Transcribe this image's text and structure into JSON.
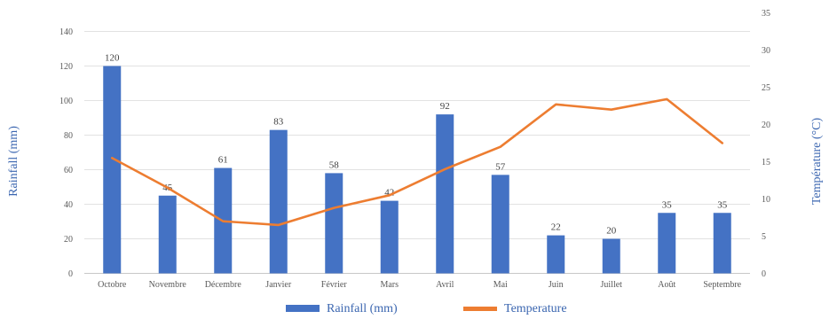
{
  "chart_data": {
    "type": "bar",
    "categories": [
      "Octobre",
      "Novembre",
      "Décembre",
      "Janvier",
      "Février",
      "Mars",
      "Avril",
      "Mai",
      "Juin",
      "Juillet",
      "Août",
      "Septembre"
    ],
    "series": [
      {
        "name": "Rainfall (mm)",
        "type": "bar",
        "axis": "left",
        "color": "#4472C4",
        "values": [
          120,
          45,
          61,
          83,
          58,
          42,
          92,
          57,
          22,
          20,
          35,
          35
        ],
        "data_labels": [
          "120",
          "45",
          "61",
          "83",
          "58",
          "42",
          "92",
          "57",
          "22",
          "20",
          "35",
          "35"
        ]
      },
      {
        "name": "Temperature",
        "type": "line",
        "axis": "right",
        "color": "#ED7D31",
        "values": [
          15.5,
          11.5,
          7.0,
          6.5,
          8.8,
          10.5,
          14.0,
          17.0,
          22.7,
          22.0,
          23.4,
          17.5
        ]
      }
    ],
    "ylabel": "Rainfall (mm)",
    "y2label": "Température (°C)",
    "ylim": [
      0,
      140
    ],
    "y2lim": [
      0,
      35
    ],
    "yticks": [
      "0",
      "20",
      "40",
      "60",
      "80",
      "100",
      "120",
      "140"
    ],
    "y2ticks": [
      "0",
      "5",
      "10",
      "15",
      "20",
      "25",
      "30",
      "35"
    ],
    "grid": true,
    "legend_position": "bottom"
  }
}
